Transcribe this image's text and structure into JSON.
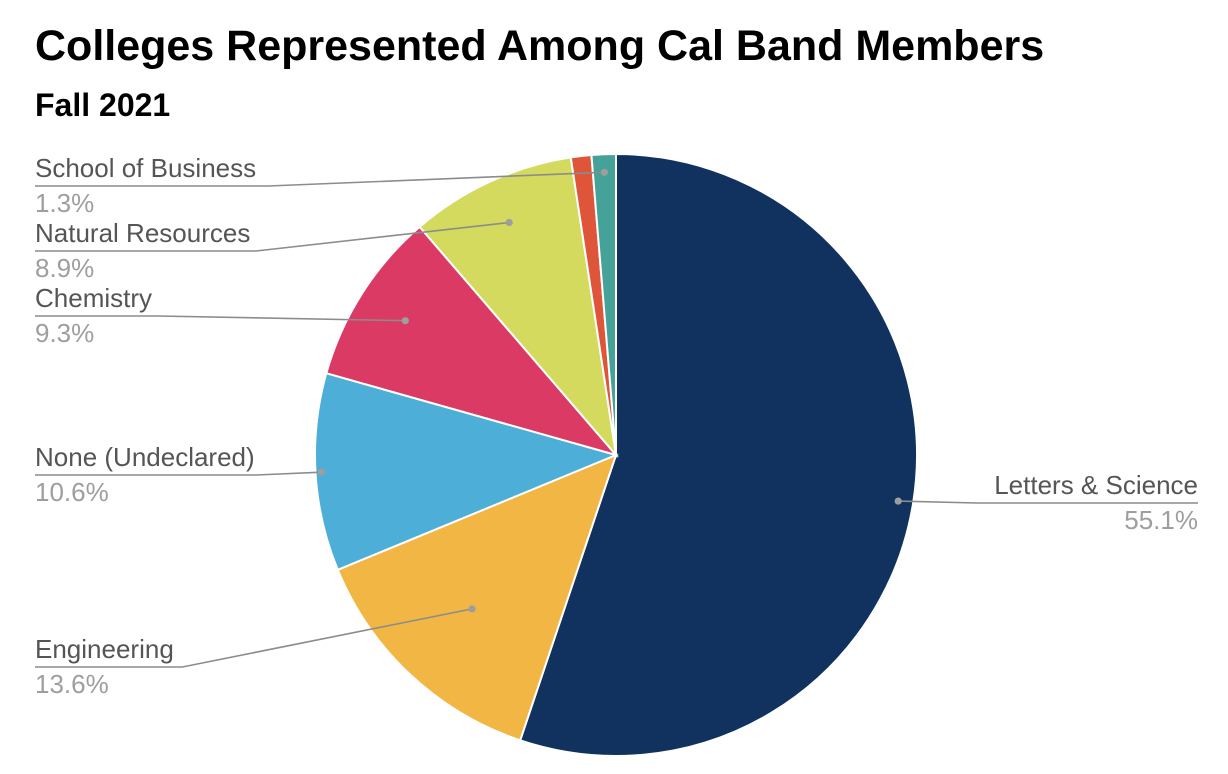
{
  "chart_data": {
    "type": "pie",
    "title": "Colleges Represented Among Cal Band Members",
    "subtitle": "Fall 2021",
    "slices": [
      {
        "label": "Letters & Science",
        "value": 55.1,
        "value_label": "55.1%",
        "color": "#11325e"
      },
      {
        "label": "Engineering",
        "value": 13.6,
        "value_label": "13.6%",
        "color": "#f1b643"
      },
      {
        "label": "None (Undeclared)",
        "value": 10.6,
        "value_label": "10.6%",
        "color": "#4daed7"
      },
      {
        "label": "Chemistry",
        "value": 9.3,
        "value_label": "9.3%",
        "color": "#db3a65"
      },
      {
        "label": "Natural Resources",
        "value": 8.9,
        "value_label": "8.9%",
        "color": "#d3da5e"
      },
      {
        "label": "",
        "value": 1.1,
        "value_label": "",
        "color": "#de5539"
      },
      {
        "label": "School of Business",
        "value": 1.3,
        "value_label": "1.3%",
        "color": "#44a298"
      }
    ],
    "start_angle": "12 o'clock",
    "direction": "clockwise",
    "legend": "none"
  }
}
